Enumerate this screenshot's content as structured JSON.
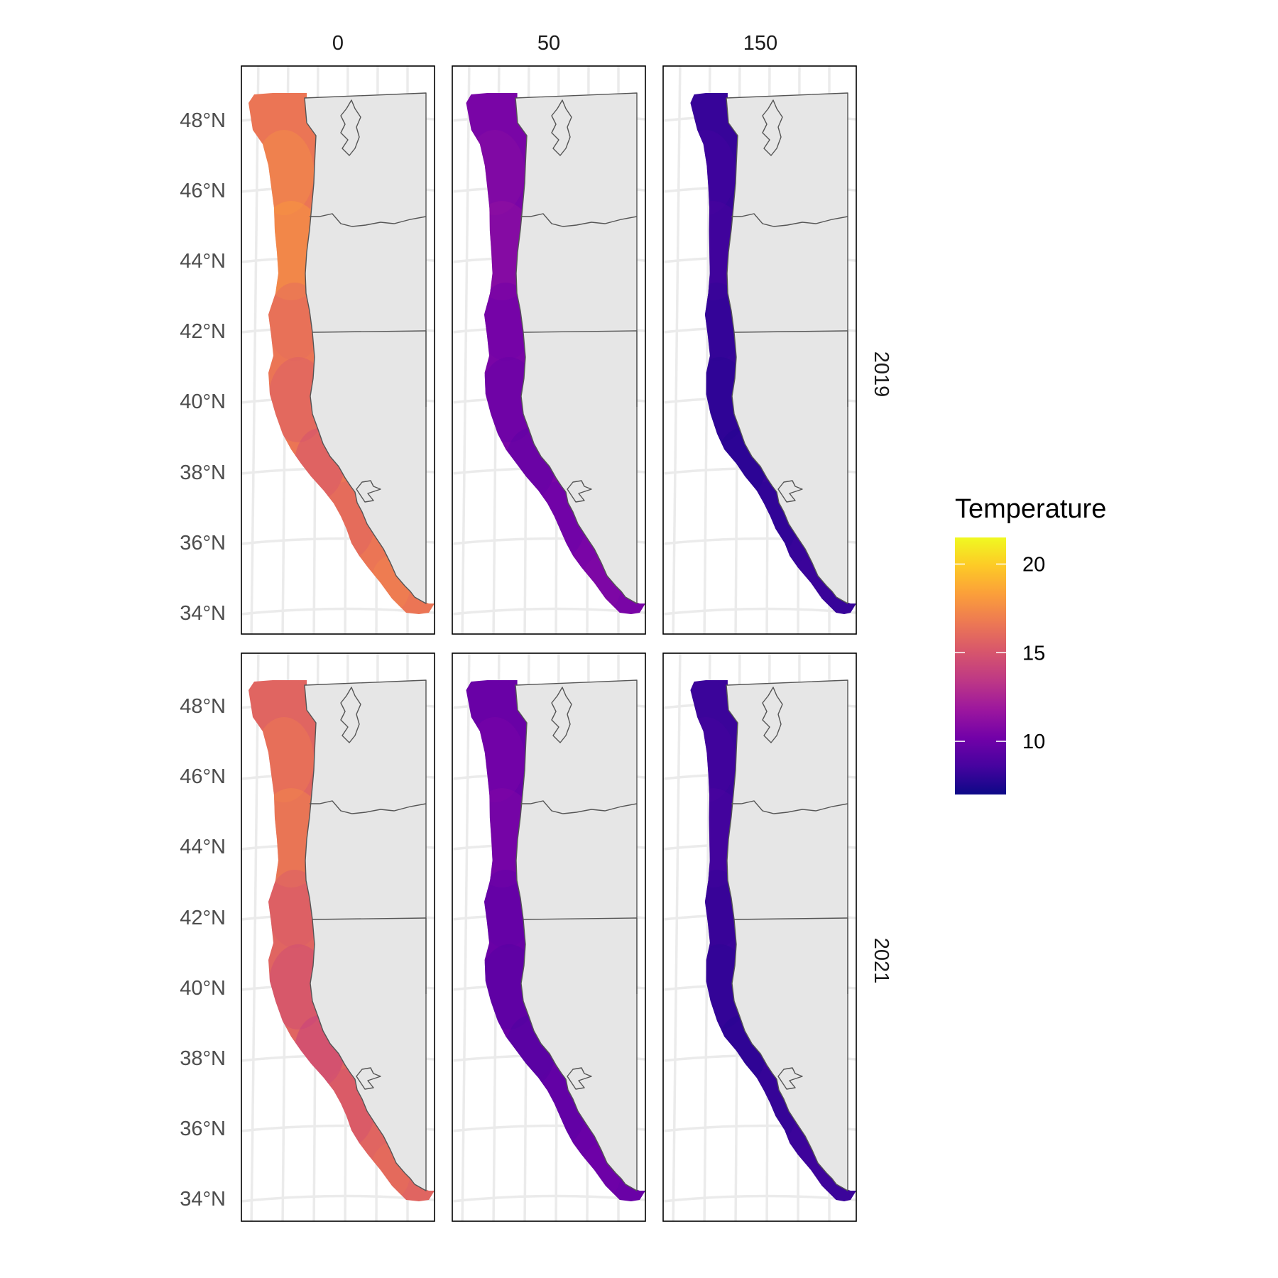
{
  "figure": {
    "columns": [
      "0",
      "50",
      "150"
    ],
    "rows": [
      "2019",
      "2021"
    ],
    "y_axis_ticks": [
      "48°N",
      "46°N",
      "44°N",
      "42°N",
      "40°N",
      "38°N",
      "36°N",
      "34°N"
    ]
  },
  "legend": {
    "title": "Temperature",
    "ticks": [
      "20",
      "15",
      "10"
    ],
    "range": [
      7,
      21.5
    ],
    "colormap": "plasma",
    "colors": [
      "#0d0887",
      "#46039f",
      "#7201a8",
      "#9c179e",
      "#bd3786",
      "#d8576b",
      "#ed7953",
      "#fb9f3a",
      "#fdca26",
      "#f0f921"
    ]
  },
  "panels": [
    {
      "row": "2019",
      "column": "0",
      "mean_temperature": 16.5
    },
    {
      "row": "2019",
      "column": "50",
      "mean_temperature": 10.5
    },
    {
      "row": "2019",
      "column": "150",
      "mean_temperature": 8.2
    },
    {
      "row": "2021",
      "column": "0",
      "mean_temperature": 15.7
    },
    {
      "row": "2021",
      "column": "50",
      "mean_temperature": 9.9
    },
    {
      "row": "2021",
      "column": "150",
      "mean_temperature": 8.3
    }
  ]
}
